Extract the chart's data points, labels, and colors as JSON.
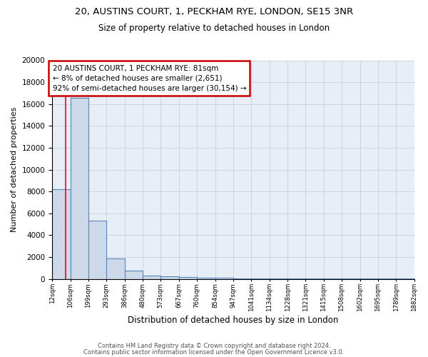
{
  "title1": "20, AUSTINS COURT, 1, PECKHAM RYE, LONDON, SE15 3NR",
  "title2": "Size of property relative to detached houses in London",
  "xlabel": "Distribution of detached houses by size in London",
  "ylabel": "Number of detached properties",
  "bar_values": [
    8200,
    16600,
    5300,
    1850,
    750,
    300,
    210,
    170,
    120,
    80,
    50,
    35,
    25,
    18,
    12,
    9,
    7,
    5,
    4,
    3
  ],
  "bin_edges": [
    12,
    106,
    199,
    293,
    386,
    480,
    573,
    667,
    760,
    854,
    947,
    1041,
    1134,
    1228,
    1321,
    1415,
    1508,
    1602,
    1695,
    1789,
    1882
  ],
  "tick_labels": [
    "12sqm",
    "106sqm",
    "199sqm",
    "293sqm",
    "386sqm",
    "480sqm",
    "573sqm",
    "667sqm",
    "760sqm",
    "854sqm",
    "947sqm",
    "1041sqm",
    "1134sqm",
    "1228sqm",
    "1321sqm",
    "1415sqm",
    "1508sqm",
    "1602sqm",
    "1695sqm",
    "1789sqm",
    "1882sqm"
  ],
  "bar_color": "#cdd9e8",
  "bar_edge_color": "#5588bb",
  "grid_color": "#c8d0dc",
  "bg_color": "#e8eef6",
  "red_line_x": 81,
  "annotation_text": "20 AUSTINS COURT, 1 PECKHAM RYE: 81sqm\n← 8% of detached houses are smaller (2,651)\n92% of semi-detached houses are larger (30,154) →",
  "annotation_box_color": "#ffffff",
  "annotation_box_edge": "#cc0000",
  "footer1": "Contains HM Land Registry data © Crown copyright and database right 2024.",
  "footer2": "Contains public sector information licensed under the Open Government Licence v3.0.",
  "ylim": [
    0,
    20000
  ],
  "yticks": [
    0,
    2000,
    4000,
    6000,
    8000,
    10000,
    12000,
    14000,
    16000,
    18000,
    20000
  ]
}
